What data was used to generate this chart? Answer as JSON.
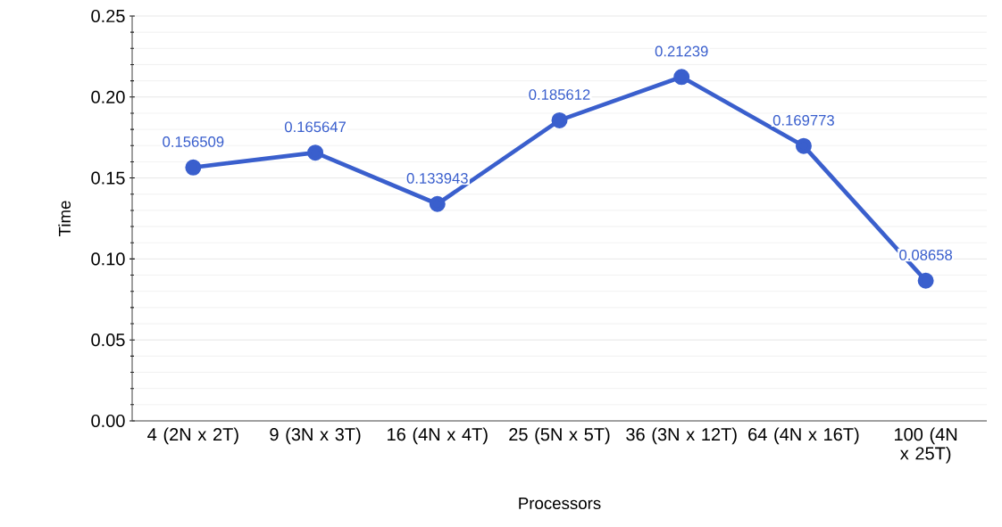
{
  "chart_data": {
    "type": "line",
    "xlabel": "Processors",
    "ylabel": "Time",
    "categories": [
      "4 (2N x 2T)",
      "9 (3N x 3T)",
      "16 (4N x 4T)",
      "25 (5N x 5T)",
      "36 (3N x 12T)",
      "64 (4N x 16T)",
      "100 (4N x 25T)"
    ],
    "series": [
      {
        "color": "#3a5fcd",
        "values": [
          0.156509,
          0.165647,
          0.133943,
          0.185612,
          0.21239,
          0.169773,
          0.08658
        ]
      }
    ],
    "ylim": [
      0,
      0.25
    ],
    "yticks": [
      {
        "value": 0,
        "label": "0.00"
      },
      {
        "value": 0.05,
        "label": "0.05"
      },
      {
        "value": 0.1,
        "label": "0.10"
      },
      {
        "value": 0.15,
        "label": "0.15"
      },
      {
        "value": 0.2,
        "label": "0.20"
      },
      {
        "value": 0.25,
        "label": "0.25"
      }
    ],
    "grid": "y",
    "marker": "circle",
    "line_style": "solid",
    "data_labels": true
  }
}
